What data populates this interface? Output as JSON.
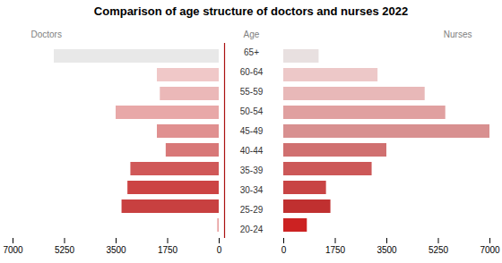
{
  "chart_data": {
    "type": "bar",
    "orientation": "horizontal",
    "title": "Comparison of age structure of doctors and nurses 2022",
    "ylabel": "Age",
    "categories": [
      "20-24",
      "25-29",
      "30-34",
      "35-39",
      "40-44",
      "45-49",
      "50-54",
      "55-59",
      "60-64",
      "65+"
    ],
    "series": [
      {
        "name": "Doctors",
        "values": [
          50,
          3300,
          3100,
          3000,
          1800,
          2100,
          3500,
          2000,
          2100,
          5600
        ],
        "colors": [
          "#e8a0a0",
          "#c84040",
          "#cc4444",
          "#d05858",
          "#d87878",
          "#e09090",
          "#e8a8a8",
          "#ebb8b8",
          "#f0c8c8",
          "#e8e8e8"
        ]
      },
      {
        "name": "Nurses",
        "values": [
          800,
          1600,
          1450,
          3000,
          3500,
          7000,
          5500,
          4800,
          3200,
          1200
        ],
        "colors": [
          "#cc2222",
          "#c03030",
          "#c84444",
          "#cc5858",
          "#d07070",
          "#d89090",
          "#e0a0a0",
          "#e8b8b8",
          "#edc8c8",
          "#e8e0e0"
        ]
      }
    ],
    "xlim": [
      0,
      7000
    ],
    "xticks": [
      0,
      1750,
      3500,
      5250,
      7000
    ],
    "grid": false
  }
}
